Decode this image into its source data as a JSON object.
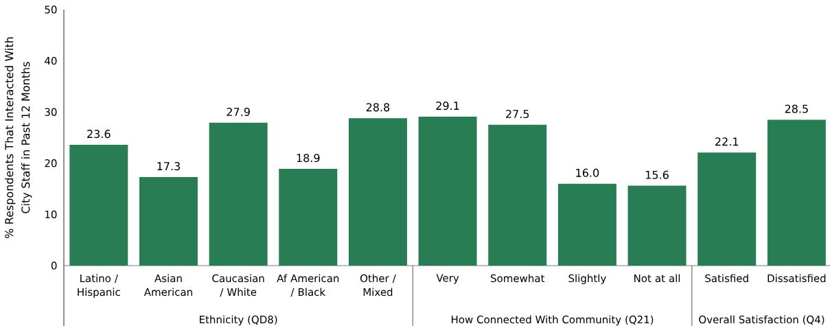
{
  "chart_data": {
    "type": "bar",
    "ylabel": "% Respondents That Interacted With City Staff in Past 12 Months",
    "categories": [
      "Latino / Hispanic",
      "Asian American",
      "Caucasian / White",
      "Af American / Black",
      "Other / Mixed",
      "Very",
      "Somewhat",
      "Slightly",
      "Not at all",
      "Satisfied",
      "Dissatisfied"
    ],
    "values": [
      23.6,
      17.3,
      27.9,
      18.9,
      28.8,
      29.1,
      27.5,
      16.0,
      15.6,
      22.1,
      28.5
    ],
    "value_labels": [
      "23.6",
      "17.3",
      "27.9",
      "18.9",
      "28.8",
      "29.1",
      "27.5",
      "16.0",
      "15.6",
      "22.1",
      "28.5"
    ],
    "color": "#297d54",
    "ylim": [
      0,
      50
    ],
    "yticks": [
      0,
      10,
      20,
      30,
      40,
      50
    ],
    "annotations": [
      "Ethnicity (QD8)",
      "How Connected With Community (Q21)",
      "Overall Satisfaction (Q4)"
    ]
  }
}
